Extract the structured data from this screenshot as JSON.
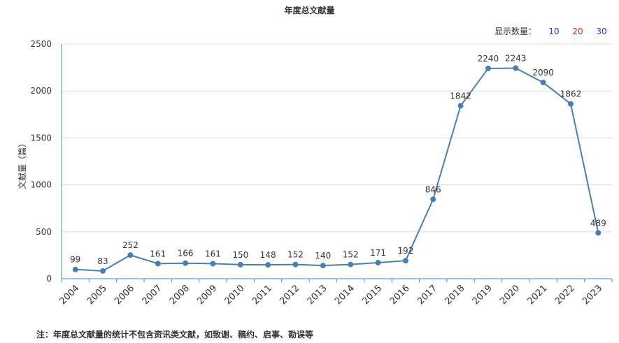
{
  "title": "年度总文献量",
  "count_selector": {
    "label": "显示数量：",
    "options": [
      {
        "label": "10",
        "color": "#1e3cc8"
      },
      {
        "label": "20",
        "color": "#e02020"
      },
      {
        "label": "30",
        "color": "#1e3cc8"
      }
    ]
  },
  "note": "注：年度总文献量的统计不包含资讯类文献，如致谢、稿约、启事、勘误等",
  "chart_data": {
    "type": "line",
    "title": "年度总文献量",
    "ylabel": "文献量（篇）",
    "xlabel": "",
    "categories": [
      "2004",
      "2005",
      "2006",
      "2007",
      "2008",
      "2009",
      "2010",
      "2011",
      "2012",
      "2013",
      "2014",
      "2015",
      "2016",
      "2017",
      "2018",
      "2019",
      "2020",
      "2021",
      "2022",
      "2023"
    ],
    "series": [
      {
        "values": [
          99,
          83,
          252,
          161,
          166,
          161,
          150,
          148,
          152,
          140,
          152,
          171,
          192,
          846,
          1842,
          2240,
          2243,
          2090,
          1862,
          489
        ]
      }
    ],
    "ylim": [
      0,
      2500
    ],
    "yticks": [
      "0",
      "500",
      "1000",
      "1500",
      "2000",
      "2500"
    ],
    "grid": true,
    "line_color": "#4a7fb0",
    "axis_color": "#3a8fc0"
  }
}
